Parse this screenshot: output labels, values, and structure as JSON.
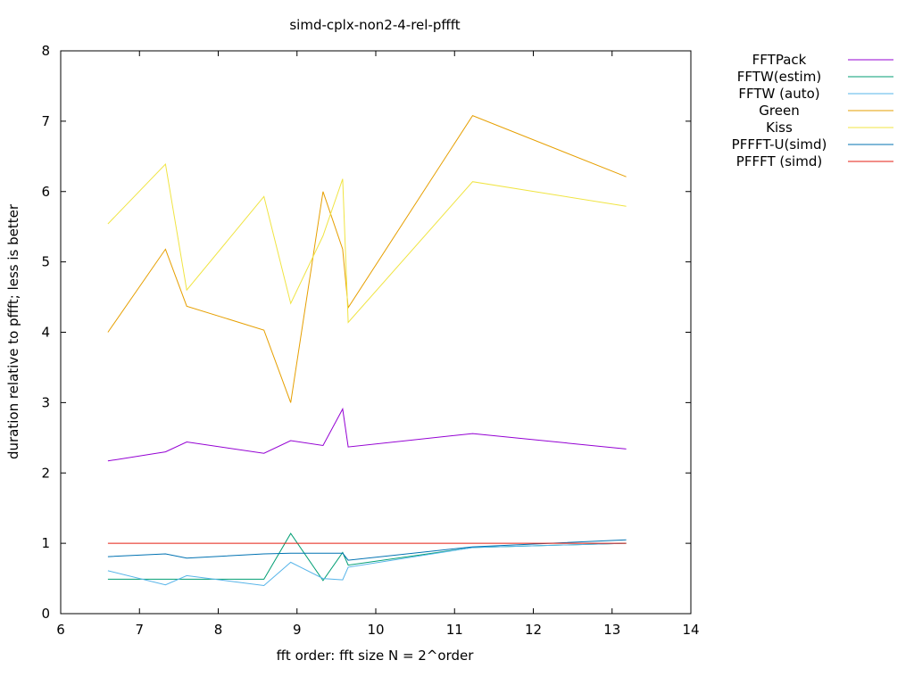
{
  "chart_data": {
    "type": "line",
    "title": "simd-cplx-non2-4-rel-pffft",
    "xlabel": "fft order: fft size N = 2^order",
    "ylabel": "duration relative to pffft; less is better",
    "xlim": [
      6,
      14
    ],
    "ylim": [
      0,
      8
    ],
    "xticks": [
      6,
      7,
      8,
      9,
      10,
      11,
      12,
      13,
      14
    ],
    "yticks": [
      0,
      1,
      2,
      3,
      4,
      5,
      6,
      7,
      8
    ],
    "grid": false,
    "legend_position": "outside top-right",
    "x": [
      6.6,
      7.33,
      7.6,
      8.58,
      8.92,
      9.33,
      9.58,
      9.65,
      11.23,
      13.18
    ],
    "series": [
      {
        "name": "FFTPack",
        "color": "#9400d3",
        "values": [
          2.17,
          2.3,
          2.44,
          2.28,
          2.46,
          2.39,
          2.91,
          2.37,
          2.56,
          2.34
        ]
      },
      {
        "name": "FFTW(estim)",
        "color": "#009e73",
        "values": [
          0.49,
          0.49,
          0.49,
          0.49,
          1.14,
          0.47,
          0.87,
          0.69,
          0.94,
          1.0
        ]
      },
      {
        "name": "FFTW (auto)",
        "color": "#56b4e9",
        "values": [
          0.61,
          0.41,
          0.54,
          0.4,
          0.73,
          0.5,
          0.48,
          0.66,
          0.94,
          1.0
        ]
      },
      {
        "name": "Green",
        "color": "#e69f00",
        "values": [
          4.0,
          5.18,
          4.37,
          4.03,
          3.0,
          6.0,
          5.18,
          4.35,
          7.08,
          6.21
        ]
      },
      {
        "name": "Kiss",
        "color": "#f0e442",
        "values": [
          5.54,
          6.39,
          4.6,
          5.93,
          4.41,
          5.37,
          6.18,
          4.14,
          6.14,
          5.79
        ]
      },
      {
        "name": "PFFFT-U(simd)",
        "color": "#0072b2",
        "values": [
          0.81,
          0.85,
          0.79,
          0.85,
          0.86,
          0.86,
          0.86,
          0.76,
          0.95,
          1.05
        ]
      },
      {
        "name": "PFFFT (simd)",
        "color": "#e51e10",
        "values": [
          1.0,
          1.0,
          1.0,
          1.0,
          1.0,
          1.0,
          1.0,
          1.0,
          1.0,
          1.0
        ]
      }
    ]
  }
}
